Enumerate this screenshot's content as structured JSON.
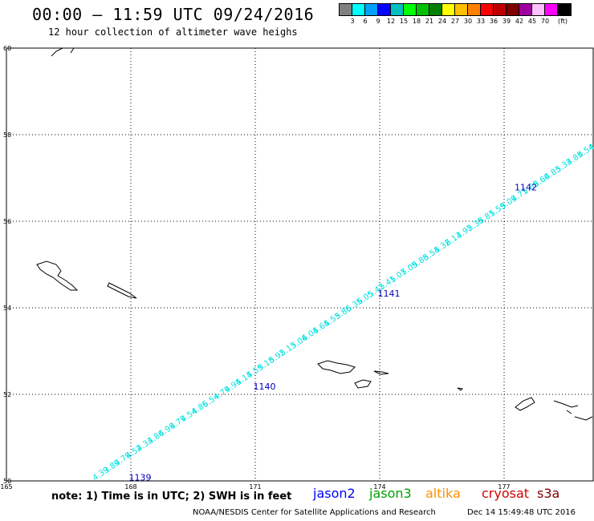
{
  "header": {
    "title": "00:00 – 11:59 UTC 09/24/2016",
    "subtitle": "12 hour collection of altimeter wave heighs"
  },
  "color_scale": {
    "colors": [
      "#808080",
      "#00ffff",
      "#00a0ff",
      "#0000ff",
      "#00c0c0",
      "#00ff00",
      "#00c000",
      "#008000",
      "#ffff00",
      "#ffc000",
      "#ff8000",
      "#ff0000",
      "#c00000",
      "#800000",
      "#a000a0",
      "#ffc0ff",
      "#ff00ff",
      "#000000"
    ],
    "labels": [
      "3",
      "6",
      "9",
      "12",
      "15",
      "18",
      "21",
      "24",
      "27",
      "30",
      "33",
      "36",
      "39",
      "42",
      "45",
      "70",
      "(ft)"
    ]
  },
  "map": {
    "lon_ticks": [
      "165",
      "168",
      "171",
      "174",
      "177"
    ],
    "lat_ticks": [
      "60",
      "58",
      "56",
      "54",
      "52",
      "50"
    ],
    "track_color": "#00e0e0",
    "track_labels": [
      "4.39",
      "3.89",
      "4.79",
      "4.52",
      "4.33",
      "4.86",
      "4.99",
      "4.79",
      "4.54",
      "4.86",
      "5.54",
      "4.79",
      "4.94",
      "5.14",
      "5.59",
      "5.18",
      "5.92",
      "5.13",
      "5.04",
      "6.04",
      "5.64",
      "5.53",
      "5.86",
      "5.35",
      "6.05",
      "5.42",
      "5.41",
      "5.07",
      "5.09",
      "5.88",
      "5.54",
      "5.32",
      "6.13",
      "4.92",
      "5.38",
      "5.81",
      "5.59",
      "5.09",
      "4.71",
      "5.69",
      "5.66",
      "4.83",
      "5.33",
      "4.85",
      "4.54",
      "4.95"
    ],
    "pass_labels": [
      {
        "text": "1139",
        "lon": 168.3,
        "lat": 50.05
      },
      {
        "text": "1140",
        "lon": 171.3,
        "lat": 52.15
      },
      {
        "text": "1141",
        "lon": 174.3,
        "lat": 54.3
      },
      {
        "text": "1142",
        "lon": 177.6,
        "lat": 56.75
      }
    ],
    "pass_color": "#0000c0"
  },
  "footer": {
    "note": "note: 1) Time is in UTC; 2) SWH is in feet",
    "satellites": [
      {
        "name": "jason2",
        "color": "#0000ff"
      },
      {
        "name": "jason3",
        "color": "#00a000"
      },
      {
        "name": "altika",
        "color": "#ff9000"
      },
      {
        "name": "cryosat",
        "color": "#d00000"
      },
      {
        "name": "s3a",
        "color": "#800000"
      }
    ],
    "credit": "NOAA/NESDIS Center for Satellite Applications and Research",
    "date": "Dec 14 15:49:48 UTC 2016"
  }
}
